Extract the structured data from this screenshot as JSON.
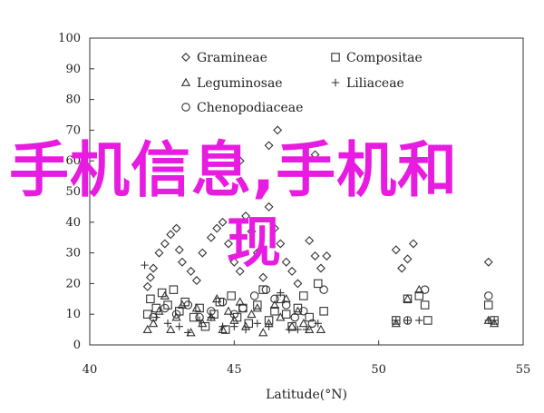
{
  "chart_data": {
    "type": "scatter",
    "title": "",
    "xlabel": "Latitude(°N)",
    "ylabel": "",
    "xlim": [
      40,
      55
    ],
    "ylim": [
      0,
      100
    ],
    "x_ticks": [
      "40",
      "45",
      "50",
      "55"
    ],
    "y_ticks": [
      "0",
      "10",
      "20",
      "30",
      "40",
      "50",
      "60",
      "70",
      "80",
      "90",
      "100"
    ],
    "grid": false,
    "legend_position": "top-left",
    "series": [
      {
        "name": "Gramineae",
        "marker": "diamond",
        "color": "#333333",
        "points": [
          [
            42.0,
            19
          ],
          [
            42.1,
            22
          ],
          [
            42.2,
            25
          ],
          [
            42.4,
            30
          ],
          [
            42.6,
            33
          ],
          [
            42.8,
            36
          ],
          [
            43.0,
            38
          ],
          [
            43.1,
            31
          ],
          [
            43.2,
            27
          ],
          [
            43.5,
            24
          ],
          [
            43.7,
            21
          ],
          [
            43.9,
            30
          ],
          [
            44.2,
            35
          ],
          [
            44.4,
            38
          ],
          [
            44.6,
            40
          ],
          [
            44.8,
            33
          ],
          [
            45.0,
            27
          ],
          [
            45.2,
            24
          ],
          [
            45.4,
            42
          ],
          [
            45.6,
            37
          ],
          [
            45.8,
            30
          ],
          [
            46.0,
            22
          ],
          [
            46.2,
            45
          ],
          [
            46.4,
            38
          ],
          [
            46.6,
            33
          ],
          [
            46.8,
            27
          ],
          [
            47.0,
            24
          ],
          [
            47.2,
            20
          ],
          [
            47.6,
            34
          ],
          [
            47.8,
            29
          ],
          [
            48.0,
            25
          ],
          [
            48.2,
            29
          ],
          [
            50.6,
            31
          ],
          [
            50.8,
            25
          ],
          [
            51.0,
            28
          ],
          [
            51.2,
            33
          ],
          [
            53.8,
            27
          ],
          [
            46.2,
            65
          ],
          [
            46.5,
            70
          ],
          [
            45.2,
            60
          ],
          [
            47.8,
            62
          ]
        ]
      },
      {
        "name": "Compositae",
        "marker": "square",
        "color": "#333333",
        "points": [
          [
            42.0,
            10
          ],
          [
            42.1,
            15
          ],
          [
            42.3,
            12
          ],
          [
            42.5,
            17
          ],
          [
            42.7,
            13
          ],
          [
            42.9,
            18
          ],
          [
            43.1,
            11
          ],
          [
            43.3,
            14
          ],
          [
            43.6,
            9
          ],
          [
            43.8,
            12
          ],
          [
            44.0,
            6
          ],
          [
            44.3,
            10
          ],
          [
            44.5,
            14
          ],
          [
            44.7,
            5
          ],
          [
            44.9,
            16
          ],
          [
            45.1,
            9
          ],
          [
            45.3,
            12
          ],
          [
            45.5,
            7
          ],
          [
            45.8,
            13
          ],
          [
            46.0,
            18
          ],
          [
            46.2,
            8
          ],
          [
            46.4,
            11
          ],
          [
            46.6,
            15
          ],
          [
            46.8,
            10
          ],
          [
            47.0,
            6
          ],
          [
            47.2,
            12
          ],
          [
            47.4,
            16
          ],
          [
            47.6,
            9
          ],
          [
            47.9,
            20
          ],
          [
            48.1,
            11
          ],
          [
            50.6,
            8
          ],
          [
            51.0,
            15
          ],
          [
            51.4,
            16
          ],
          [
            51.6,
            13
          ],
          [
            51.7,
            8
          ],
          [
            53.8,
            13
          ],
          [
            54.0,
            8
          ]
        ]
      },
      {
        "name": "Leguminosae",
        "marker": "triangle",
        "color": "#333333",
        "points": [
          [
            42.0,
            5
          ],
          [
            42.2,
            7
          ],
          [
            42.4,
            11
          ],
          [
            42.6,
            16
          ],
          [
            42.8,
            5
          ],
          [
            43.0,
            9
          ],
          [
            43.2,
            13
          ],
          [
            43.5,
            4
          ],
          [
            43.7,
            12
          ],
          [
            43.9,
            7
          ],
          [
            44.2,
            9
          ],
          [
            44.4,
            15
          ],
          [
            44.6,
            5
          ],
          [
            44.8,
            11
          ],
          [
            45.0,
            8
          ],
          [
            45.2,
            14
          ],
          [
            45.4,
            6
          ],
          [
            45.6,
            10
          ],
          [
            45.8,
            12
          ],
          [
            46.0,
            4
          ],
          [
            46.2,
            7
          ],
          [
            46.4,
            13
          ],
          [
            46.6,
            9
          ],
          [
            46.8,
            15
          ],
          [
            47.0,
            6
          ],
          [
            47.2,
            11
          ],
          [
            47.4,
            7
          ],
          [
            47.6,
            5
          ],
          [
            48.0,
            5
          ],
          [
            50.6,
            7
          ],
          [
            51.0,
            15
          ],
          [
            51.4,
            18
          ],
          [
            53.8,
            8
          ],
          [
            54.0,
            7
          ]
        ]
      },
      {
        "name": "Liliaceae",
        "marker": "plus",
        "color": "#333333",
        "points": [
          [
            41.9,
            26
          ],
          [
            42.3,
            9
          ],
          [
            42.7,
            7
          ],
          [
            43.1,
            6
          ],
          [
            43.4,
            4
          ],
          [
            43.8,
            8
          ],
          [
            44.2,
            9
          ],
          [
            44.6,
            6
          ],
          [
            45.0,
            6
          ],
          [
            45.4,
            5
          ],
          [
            45.8,
            7
          ],
          [
            46.2,
            6
          ],
          [
            46.6,
            17
          ],
          [
            46.9,
            5
          ],
          [
            47.2,
            5
          ],
          [
            47.5,
            5
          ],
          [
            47.9,
            7
          ],
          [
            50.6,
            8
          ],
          [
            51.0,
            8
          ],
          [
            51.4,
            8
          ],
          [
            53.8,
            8
          ],
          [
            54.0,
            8
          ]
        ]
      },
      {
        "name": "Chenopodiaceae",
        "marker": "circle",
        "color": "#333333",
        "points": [
          [
            42.2,
            9
          ],
          [
            42.6,
            12
          ],
          [
            43.0,
            10
          ],
          [
            43.4,
            13
          ],
          [
            43.8,
            9
          ],
          [
            44.2,
            11
          ],
          [
            44.6,
            14
          ],
          [
            45.0,
            10
          ],
          [
            45.3,
            12
          ],
          [
            45.7,
            16
          ],
          [
            46.1,
            18
          ],
          [
            46.4,
            15
          ],
          [
            46.8,
            13
          ],
          [
            47.1,
            9
          ],
          [
            47.4,
            11
          ],
          [
            47.7,
            7
          ],
          [
            48.1,
            18
          ],
          [
            51.0,
            8
          ],
          [
            51.6,
            18
          ],
          [
            53.8,
            16
          ]
        ]
      }
    ]
  },
  "overlay": {
    "line1": "手机信息,手机和",
    "line2": "现"
  }
}
